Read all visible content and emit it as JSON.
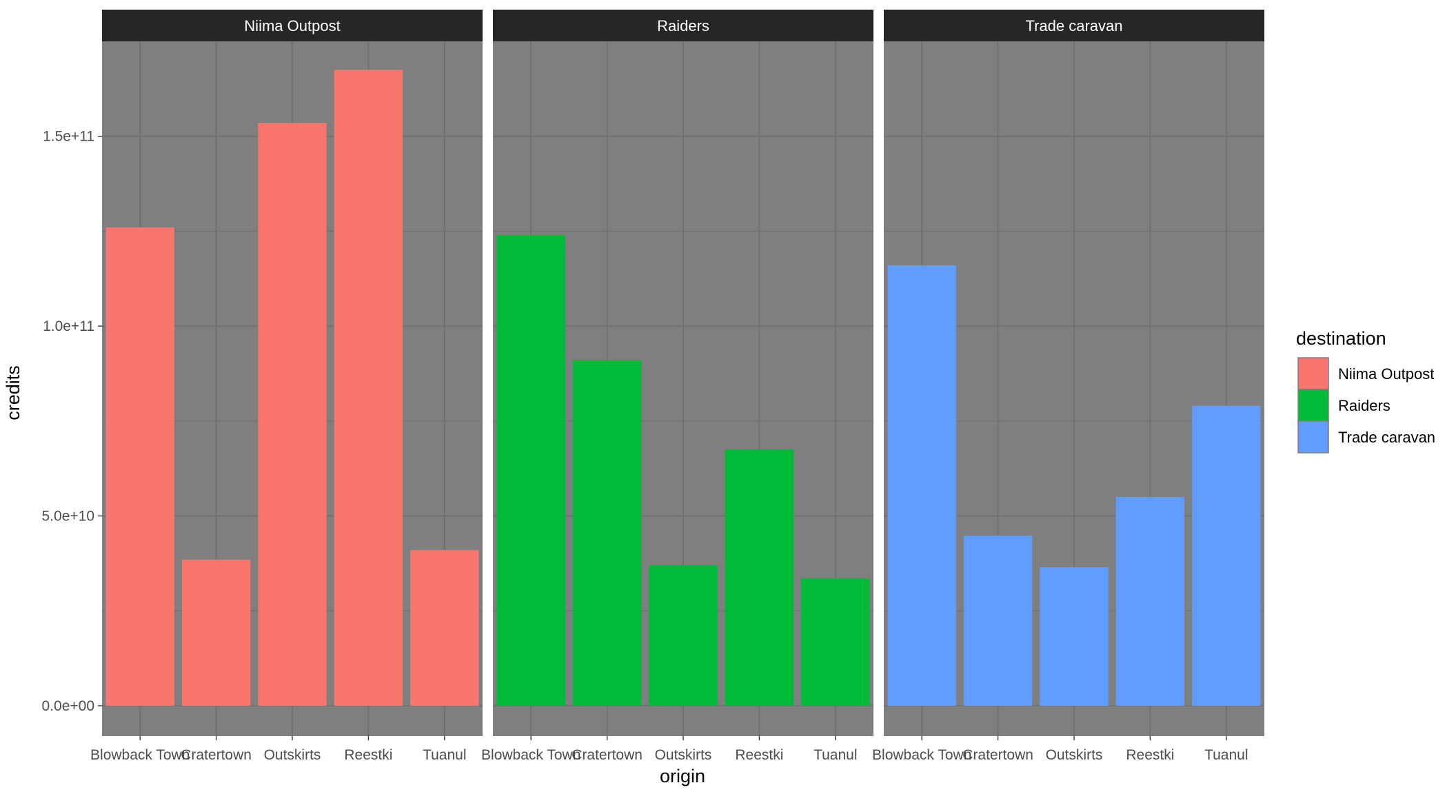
{
  "chart_data": {
    "type": "bar",
    "facet_by": "destination",
    "facets": [
      "Niima Outpost",
      "Raiders",
      "Trade caravan"
    ],
    "categories": [
      "Blowback Town",
      "Cratertown",
      "Outskirts",
      "Reestki",
      "Tuanul"
    ],
    "series": [
      {
        "name": "Niima Outpost",
        "color": "#F8766D",
        "values": [
          126000000000,
          38500000000,
          153500000000,
          167500000000,
          41000000000
        ]
      },
      {
        "name": "Raiders",
        "color": "#00BA38",
        "values": [
          124000000000,
          91000000000,
          37000000000,
          67500000000,
          33500000000
        ]
      },
      {
        "name": "Trade caravan",
        "color": "#619CFF",
        "values": [
          116000000000,
          44800000000,
          36500000000,
          55000000000,
          79000000000
        ]
      }
    ],
    "xlabel": "origin",
    "ylabel": "credits",
    "ylim": [
      -8000000000,
      175000000000
    ],
    "yticks": [
      0,
      50000000000,
      100000000000,
      150000000000
    ],
    "ytick_labels": [
      "0.0e+00",
      "5.0e+10",
      "1.0e+11",
      "1.5e+11"
    ],
    "grid": true,
    "legend": {
      "title": "destination",
      "position": "right",
      "entries": [
        "Niima Outpost",
        "Raiders",
        "Trade caravan"
      ]
    },
    "theme_colors": {
      "panel": "#7F7F7F",
      "grid": "#6E6E6E",
      "strip": "#262626",
      "strip_text": "#FFFFFF",
      "tick_text": "#4D4D4D"
    }
  }
}
